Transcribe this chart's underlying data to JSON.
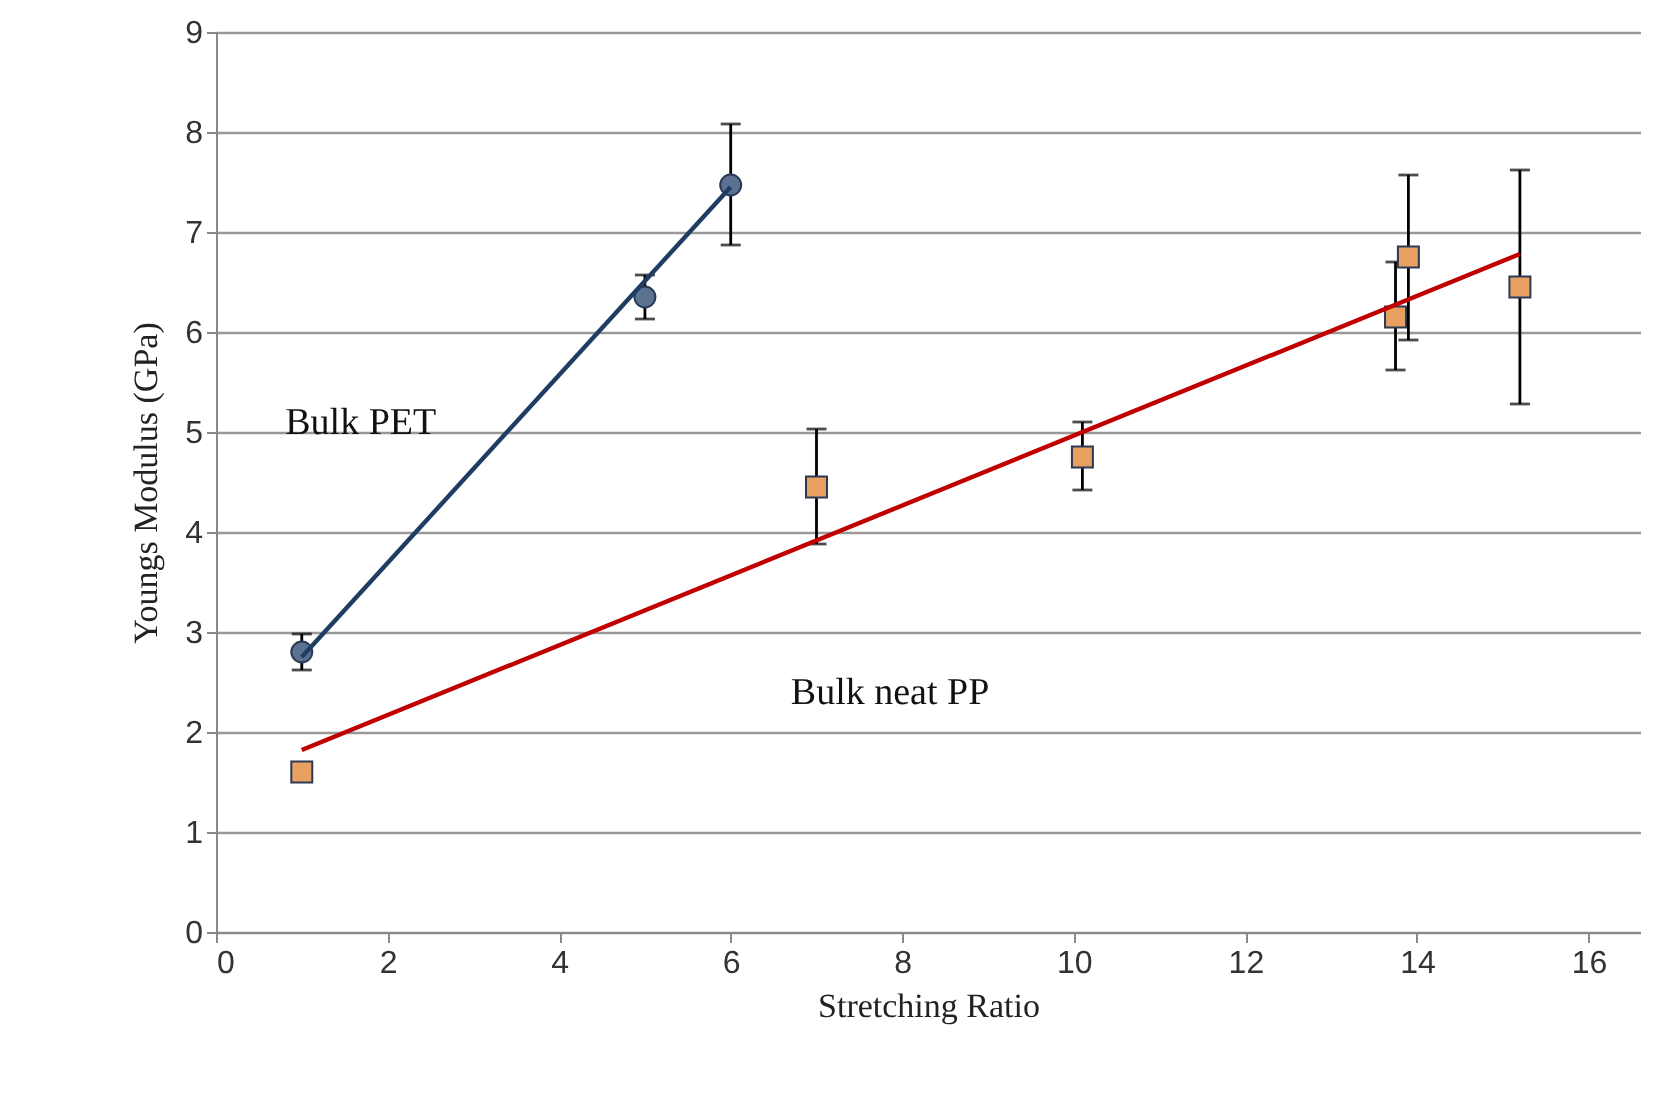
{
  "chart_data": {
    "type": "scatter",
    "xlabel": "Stretching Ratio",
    "ylabel": "Youngs Modulus (GPa)",
    "xlim": [
      0,
      16.6
    ],
    "xticks": [
      0,
      2,
      4,
      6,
      8,
      10,
      12,
      14,
      16
    ],
    "ylim": [
      0,
      9
    ],
    "yticks": [
      0,
      1,
      2,
      3,
      4,
      5,
      6,
      7,
      8,
      9
    ],
    "grid": "y",
    "series": [
      {
        "marker": "circle",
        "color": "#5b7290",
        "x": [
          1,
          5,
          6
        ],
        "values": [
          2.8,
          6.35,
          7.47
        ],
        "errors": [
          [
            2.62,
            2.98
          ],
          [
            6.13,
            6.57
          ],
          [
            6.87,
            8.08
          ]
        ]
      },
      {
        "type": "line",
        "name": "Bulk  PET",
        "color": "#1f3d63",
        "x": [
          1,
          6
        ],
        "values": [
          2.75,
          7.45
        ]
      },
      {
        "marker": "square",
        "color": "#e8a060",
        "x": [
          1,
          7,
          10.1,
          13.75,
          13.9,
          15.2
        ],
        "values": [
          1.6,
          4.45,
          4.75,
          6.15,
          6.75,
          6.45
        ],
        "errors": [
          null,
          [
            3.88,
            5.03
          ],
          [
            4.42,
            5.1
          ],
          [
            5.62,
            6.7
          ],
          [
            5.92,
            7.57
          ],
          [
            5.28,
            7.62
          ]
        ]
      },
      {
        "type": "line",
        "name": "Bulk neat PP",
        "color": "#c00000",
        "x": [
          1,
          15.2
        ],
        "values": [
          1.82,
          6.78
        ]
      }
    ]
  }
}
